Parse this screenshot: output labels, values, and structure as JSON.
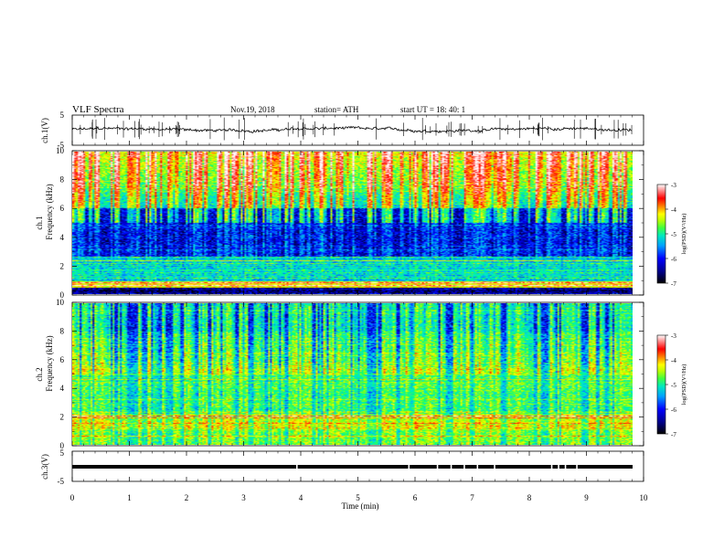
{
  "header": {
    "title": "VLF  Spectra",
    "date": "Nov.19, 2018",
    "station": "station= ATH",
    "start": "start  UT  =    18: 40: 1"
  },
  "chart_data": [
    {
      "id": "ch1-waveform",
      "type": "line",
      "ylabel": "ch.1(V)",
      "ylim": [
        -5,
        5
      ],
      "yticks": [
        "5",
        "-5"
      ],
      "series": [
        {
          "color": "#000000",
          "baseline": 0
        }
      ]
    },
    {
      "id": "ch1-spectrogram",
      "type": "heatmap",
      "ylabel_top": "ch.1",
      "ylabel": "Frequency  (kHz)",
      "ylim": [
        0,
        10
      ],
      "yticks": [
        "0",
        "2",
        "4",
        "6",
        "8",
        "10"
      ],
      "colorbar": {
        "label": "log(PSD)(V²/Hz)",
        "range": [
          -7,
          -3
        ],
        "ticks": [
          "-3",
          "-4",
          "-5",
          "-6",
          "-7"
        ]
      }
    },
    {
      "id": "ch2-spectrogram",
      "type": "heatmap",
      "ylabel_top": "ch.2",
      "ylabel": "Frequency  (kHz)",
      "ylim": [
        0,
        10
      ],
      "yticks": [
        "0",
        "2",
        "4",
        "6",
        "8",
        "10"
      ],
      "colorbar": {
        "label": "log(PSD)(V²/Hz)",
        "range": [
          -7,
          -3
        ],
        "ticks": [
          "-3",
          "-4",
          "-5",
          "-6",
          "-7"
        ]
      }
    },
    {
      "id": "ch3-waveform",
      "type": "line",
      "ylabel": "ch.3(V)",
      "ylim": [
        -5,
        5
      ],
      "yticks": [
        "5",
        "-5"
      ],
      "series": [
        {
          "color": "#000000",
          "baseline": 0
        }
      ]
    }
  ],
  "xaxis": {
    "label": "Time  (min)",
    "xlim": [
      0,
      10
    ],
    "ticks": [
      "0",
      "1",
      "2",
      "3",
      "4",
      "5",
      "6",
      "7",
      "8",
      "9",
      "10"
    ],
    "data_end": 9.8
  },
  "colormap": [
    "#000010",
    "#00008c",
    "#0000ff",
    "#0080ff",
    "#00e0e0",
    "#00ff80",
    "#a0ff00",
    "#ffff00",
    "#ff8000",
    "#ff0000",
    "#ffb0b0",
    "#ffffff"
  ]
}
